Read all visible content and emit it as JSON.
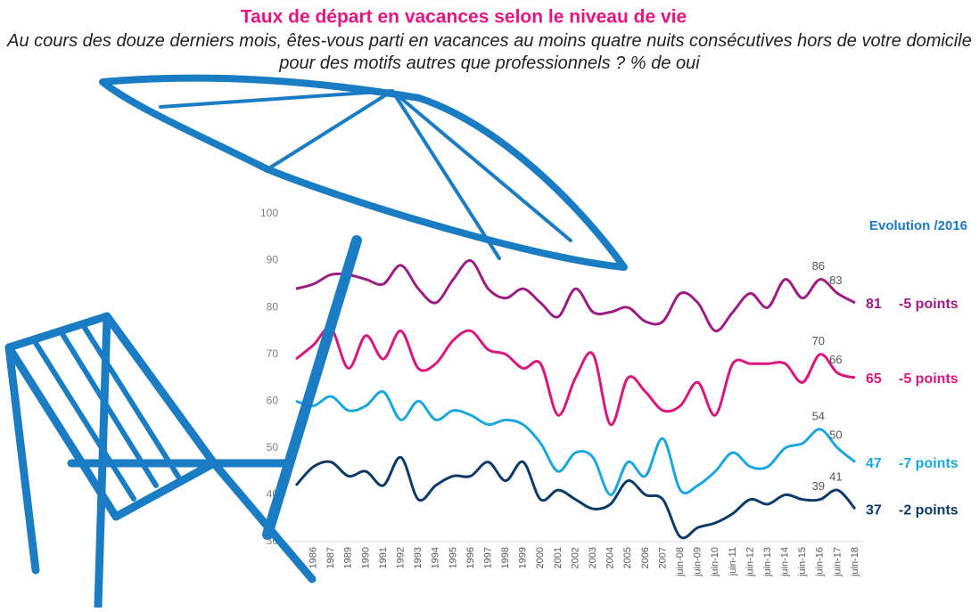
{
  "chart_data": {
    "type": "line",
    "title": "Taux de départ en vacances selon le niveau de vie",
    "subtitle": "Au cours des douze derniers mois, êtes-vous parti en vacances au moins quatre nuits consécutives hors de votre domicile pour des motifs autres que professionnels ? % de oui",
    "change_header": "Evolution /2016",
    "categories": [
      null,
      "1986",
      "1987",
      "1989",
      "1990",
      "1991",
      "1992",
      "1993",
      "1994",
      "1995",
      "1996",
      "1997",
      "1998",
      "1999",
      "2000",
      "2001",
      "2002",
      "2003",
      "2004",
      "2005",
      "2006",
      "2007",
      "juin-08",
      "juin-09",
      "juin-10",
      "juin-11",
      "juin-12",
      "juin-13",
      "juin-14",
      "juin-15",
      "juin-16",
      "juin-17",
      "juin-18"
    ],
    "ylim": [
      30,
      100
    ],
    "yticks": [
      30,
      40,
      50,
      60,
      70,
      80,
      90,
      100
    ],
    "series": [
      {
        "color": "#9c1d84",
        "change": "-5 points",
        "values": [
          84,
          85,
          87,
          87,
          86,
          85,
          89,
          84,
          81,
          86,
          90,
          84,
          82,
          84,
          81,
          78,
          84,
          79,
          79,
          80,
          77,
          77,
          83,
          81,
          75,
          79,
          83,
          80,
          86,
          82,
          86,
          83,
          81
        ],
        "value_labels": [
          null,
          null,
          null,
          null,
          null,
          null,
          null,
          null,
          null,
          null,
          null,
          null,
          null,
          null,
          null,
          null,
          null,
          null,
          null,
          null,
          null,
          null,
          null,
          null,
          null,
          null,
          null,
          null,
          null,
          null,
          "86",
          "83",
          "81"
        ]
      },
      {
        "color": "#d9177d",
        "change": "-5 points",
        "values": [
          69,
          72,
          75.5,
          67,
          74,
          69,
          75,
          67,
          68,
          73,
          75,
          71,
          70,
          67,
          68,
          57,
          65,
          70,
          55,
          65,
          62,
          58,
          59,
          64,
          57,
          68,
          68,
          68,
          68,
          64,
          70,
          66,
          65
        ],
        "value_labels": [
          null,
          null,
          null,
          null,
          null,
          null,
          null,
          null,
          null,
          null,
          null,
          null,
          null,
          null,
          null,
          null,
          null,
          null,
          null,
          null,
          null,
          null,
          null,
          null,
          null,
          null,
          null,
          null,
          null,
          null,
          "70",
          "66",
          "65"
        ]
      },
      {
        "color": "#1aa7de",
        "change": "-7 points",
        "values": [
          60,
          59,
          61,
          58,
          59,
          62,
          56,
          60,
          56,
          58,
          57,
          55,
          56,
          55,
          51,
          45,
          49,
          48,
          40,
          47,
          44,
          52,
          41,
          42,
          45,
          49,
          46,
          46,
          50,
          51,
          54,
          50,
          47
        ],
        "value_labels": [
          null,
          null,
          null,
          null,
          null,
          null,
          null,
          null,
          null,
          null,
          null,
          null,
          null,
          null,
          null,
          null,
          null,
          null,
          null,
          null,
          null,
          null,
          null,
          null,
          null,
          null,
          null,
          null,
          null,
          null,
          "54",
          "50",
          "47"
        ]
      },
      {
        "color": "#0d3a66",
        "change": "-2 points",
        "values": [
          42,
          46,
          47,
          44,
          45,
          42,
          48,
          39,
          42,
          44,
          44,
          47,
          43,
          47,
          39,
          41,
          39,
          37,
          38,
          43,
          40,
          39,
          31,
          33,
          34,
          36,
          39,
          38,
          40,
          39,
          39,
          41,
          37
        ],
        "value_labels": [
          null,
          null,
          null,
          null,
          null,
          null,
          null,
          null,
          null,
          null,
          null,
          null,
          null,
          null,
          null,
          null,
          null,
          null,
          null,
          null,
          null,
          null,
          null,
          null,
          null,
          null,
          null,
          null,
          null,
          null,
          "39",
          "41",
          "37"
        ]
      }
    ]
  }
}
